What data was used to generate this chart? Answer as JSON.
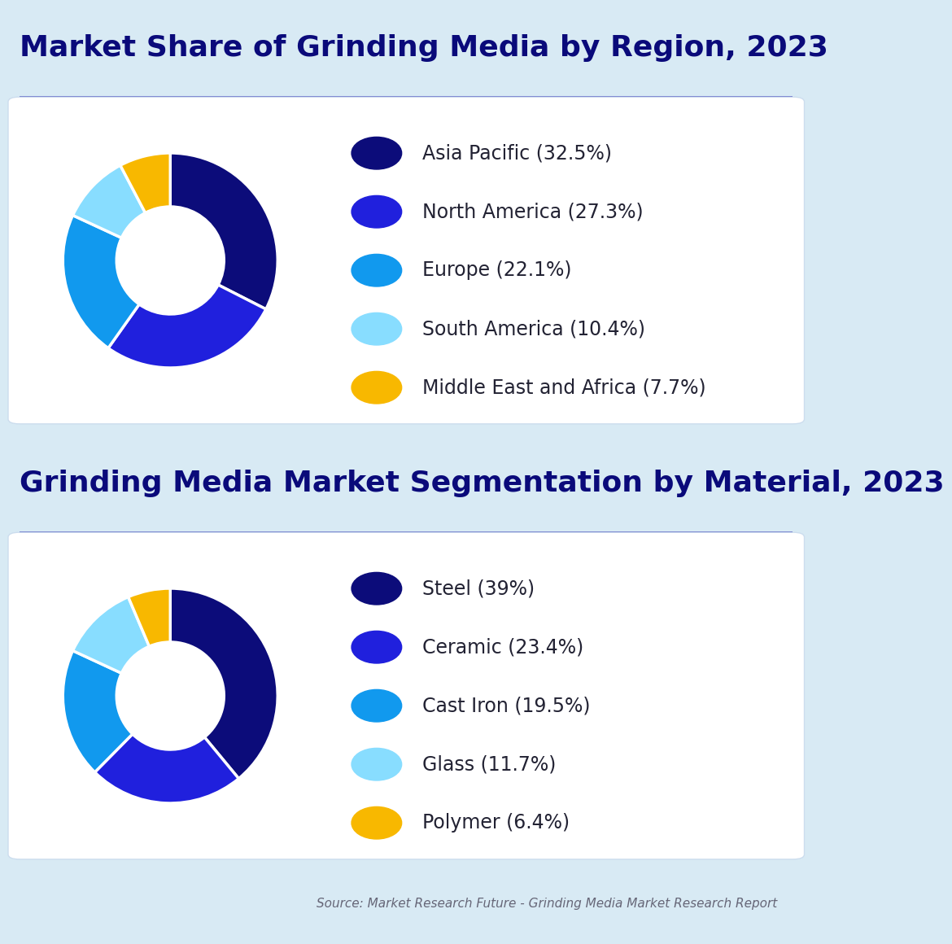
{
  "bg_color": "#d8eaf4",
  "card_color": "#ffffff",
  "title1": "Market Share of Grinding Media by Region, 2023",
  "title2": "Grinding Media Market Segmentation by Material, 2023",
  "title_color": "#0a0a7a",
  "separator_color": "#1515aa",
  "chart1": {
    "labels": [
      "Asia Pacific (32.5%)",
      "North America (27.3%)",
      "Europe (22.1%)",
      "South America (10.4%)",
      "Middle East and Africa (7.7%)"
    ],
    "values": [
      32.5,
      27.3,
      22.1,
      10.4,
      7.7
    ],
    "colors": [
      "#0c0c7a",
      "#2020dd",
      "#1199ee",
      "#88ddff",
      "#f8b800"
    ]
  },
  "chart2": {
    "labels": [
      "Steel (39%)",
      "Ceramic (23.4%)",
      "Cast Iron (19.5%)",
      "Glass (11.7%)",
      "Polymer (6.4%)"
    ],
    "values": [
      39.0,
      23.4,
      19.5,
      11.7,
      6.4
    ],
    "colors": [
      "#0c0c7a",
      "#2020dd",
      "#1199ee",
      "#88ddff",
      "#f8b800"
    ]
  },
  "source_text": "Source: Market Research Future - Grinding Media Market Research Report",
  "source_color": "#666677",
  "title_fontsize": 26,
  "legend_fontsize": 17,
  "source_fontsize": 11,
  "donut_width": 0.5
}
